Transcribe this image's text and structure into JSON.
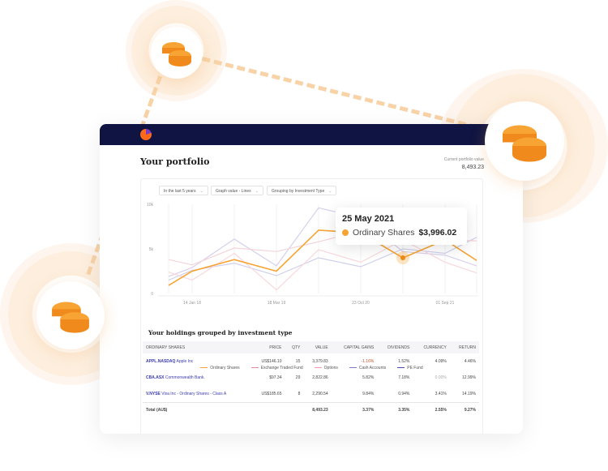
{
  "header": {
    "title": "Your portfolio",
    "portfolio_value_label": "Current portfolio value",
    "portfolio_value": "8,493.23"
  },
  "filters": [
    "In the last 5 years",
    "Graph value - Lines",
    "Grouping by Investment Type"
  ],
  "tooltip": {
    "date": "25 May 2021",
    "series": "Ordinary Shares",
    "value": "$3,996.02"
  },
  "chart_data": {
    "type": "line",
    "y_ticks": [
      "10k",
      "5k",
      "0"
    ],
    "ylim": [
      0,
      10000
    ],
    "x_tick_labels": {
      "1": "14 Jan 18",
      "3": "18 Mar 19",
      "5": "23 Oct 20",
      "7": "01 Sep 21"
    },
    "grid": true,
    "legend_placement": "bottom",
    "series": [
      {
        "name": "Cash Accounts",
        "color": "#d6d0ea",
        "values": [
          1900,
          2900,
          6100,
          3100,
          9600,
          8500,
          4700,
          4300,
          3100
        ]
      },
      {
        "name": "PE Fund",
        "color": "#cfd0ec",
        "values": [
          1500,
          2600,
          3400,
          2000,
          4000,
          3000,
          5000,
          4500,
          6300
        ]
      },
      {
        "name": "Exchange Traded Fund",
        "color": "#f5d4d8",
        "values": [
          3800,
          3200,
          5100,
          4700,
          5800,
          7000,
          6500,
          6000,
          5900
        ]
      },
      {
        "name": "Options",
        "color": "#f8d8dc",
        "values": [
          2400,
          1500,
          4500,
          400,
          4900,
          3500,
          6000,
          3500,
          2300
        ]
      },
      {
        "name": "Ordinary Shares",
        "color": "#f7a434",
        "values": [
          900,
          2500,
          3800,
          2500,
          7100,
          6800,
          3996,
          6000,
          3700
        ]
      }
    ],
    "highlight_index": 6
  },
  "legend": [
    {
      "label": "Ordinary Shares",
      "color": "#f7a434"
    },
    {
      "label": "Exchange Traded Fund",
      "color": "#e58a9a"
    },
    {
      "label": "Options",
      "color": "#ee9aa8"
    },
    {
      "label": "Cash Accounts",
      "color": "#7c7cc8"
    },
    {
      "label": "PE Fund",
      "color": "#4b4bb8"
    }
  ],
  "holdings": {
    "title": "Your holdings grouped by investment type",
    "columns": [
      "ORDINARY SHARES",
      "PRICE",
      "QTY",
      "VALUE",
      "CAPITAL GAINS",
      "DIVIDENDS",
      "CURRENCY",
      "RETURN"
    ],
    "rows": [
      {
        "ticker": "APPL.NASDAQ",
        "name": "Apple Inc",
        "price": "US$146.10",
        "qty": "15",
        "value": "3,379.83",
        "gains": "-1.16%",
        "dividends": "1.52%",
        "currency": "4.09%",
        "return": "4.46%"
      },
      {
        "ticker": "CBA.ASX",
        "name": "Commonwealth Bank.",
        "price": "$97.34",
        "qty": "29",
        "value": "2,822.86",
        "gains": "5.82%",
        "dividends": "7.18%",
        "currency": "0.00%",
        "return": "12.99%"
      },
      {
        "ticker": "V.NYSE",
        "name": "Visa Inc - Ordinary Shares - Class A",
        "price": "US$185.65",
        "qty": "8",
        "value": "2,290.54",
        "gains": "9.84%",
        "dividends": "0.94%",
        "currency": "3.41%",
        "return": "14.19%"
      }
    ],
    "total": {
      "label": "Total (AU$)",
      "value": "8,493.23",
      "gains": "3.37%",
      "dividends": "3.35%",
      "currency": "2.55%",
      "return": "9.27%"
    }
  }
}
